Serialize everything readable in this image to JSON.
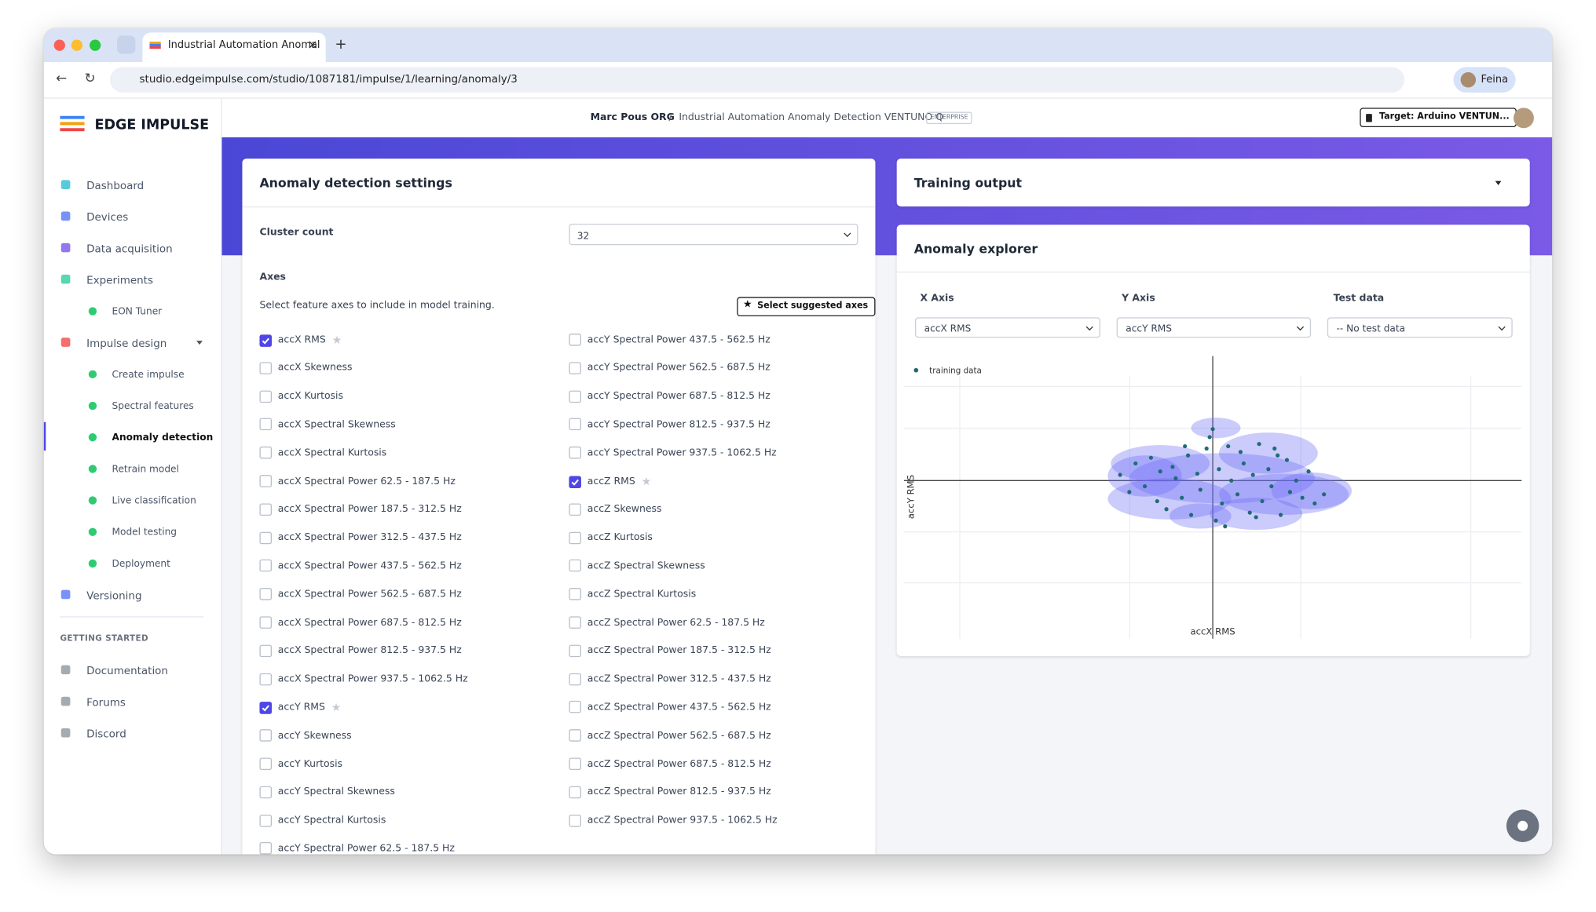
{
  "browser": {
    "tab_title": "Industrial Automation Anomal",
    "url": "studio.edgeimpulse.com/studio/1087181/impulse/1/learning/anomaly/3",
    "profile": "Feina"
  },
  "header": {
    "logo": "EDGE IMPULSE",
    "org": "Marc Pous ORG",
    "separator": "/",
    "project": "Industrial Automation Anomaly Detection VENTUNO Q",
    "badge": "ENTERPRISE",
    "target": "Target: Arduino VENTUN..."
  },
  "sidebar": {
    "nav": [
      {
        "label": "Dashboard"
      },
      {
        "label": "Devices"
      },
      {
        "label": "Data acquisition"
      },
      {
        "label": "Experiments",
        "children": [
          {
            "label": "EON Tuner"
          }
        ]
      },
      {
        "label": "Impulse design",
        "children": [
          {
            "label": "Create impulse"
          },
          {
            "label": "Spectral features"
          },
          {
            "label": "Anomaly detection",
            "active": true
          },
          {
            "label": "Retrain model"
          },
          {
            "label": "Live classification"
          },
          {
            "label": "Model testing"
          },
          {
            "label": "Deployment"
          }
        ]
      },
      {
        "label": "Versioning"
      }
    ],
    "section_title": "GETTING STARTED",
    "links": [
      "Documentation",
      "Forums",
      "Discord"
    ]
  },
  "settings": {
    "title": "Anomaly detection settings",
    "cluster_label": "Cluster count",
    "cluster_value": "32",
    "axes_title": "Axes",
    "axes_hint": "Select feature axes to include in model training.",
    "suggest_button": "Select suggested axes",
    "left_axes": [
      {
        "label": "accX RMS",
        "checked": true
      },
      {
        "label": "accX Skewness",
        "checked": false
      },
      {
        "label": "accX Kurtosis",
        "checked": false
      },
      {
        "label": "accX Spectral Skewness",
        "checked": false
      },
      {
        "label": "accX Spectral Kurtosis",
        "checked": false
      },
      {
        "label": "accX Spectral Power 62.5 - 187.5 Hz",
        "checked": false
      },
      {
        "label": "accX Spectral Power 187.5 - 312.5 Hz",
        "checked": false
      },
      {
        "label": "accX Spectral Power 312.5 - 437.5 Hz",
        "checked": false
      },
      {
        "label": "accX Spectral Power 437.5 - 562.5 Hz",
        "checked": false
      },
      {
        "label": "accX Spectral Power 562.5 - 687.5 Hz",
        "checked": false
      },
      {
        "label": "accX Spectral Power 687.5 - 812.5 Hz",
        "checked": false
      },
      {
        "label": "accX Spectral Power 812.5 - 937.5 Hz",
        "checked": false
      },
      {
        "label": "accX Spectral Power 937.5 - 1062.5 Hz",
        "checked": false
      },
      {
        "label": "accY RMS",
        "checked": true
      },
      {
        "label": "accY Skewness",
        "checked": false
      },
      {
        "label": "accY Kurtosis",
        "checked": false
      },
      {
        "label": "accY Spectral Skewness",
        "checked": false
      },
      {
        "label": "accY Spectral Kurtosis",
        "checked": false
      },
      {
        "label": "accY Spectral Power 62.5 - 187.5 Hz",
        "checked": false
      }
    ],
    "right_axes": [
      {
        "label": "accY Spectral Power 437.5 - 562.5 Hz",
        "checked": false
      },
      {
        "label": "accY Spectral Power 562.5 - 687.5 Hz",
        "checked": false
      },
      {
        "label": "accY Spectral Power 687.5 - 812.5 Hz",
        "checked": false
      },
      {
        "label": "accY Spectral Power 812.5 - 937.5 Hz",
        "checked": false
      },
      {
        "label": "accY Spectral Power 937.5 - 1062.5 Hz",
        "checked": false
      },
      {
        "label": "accZ RMS",
        "checked": true
      },
      {
        "label": "accZ Skewness",
        "checked": false
      },
      {
        "label": "accZ Kurtosis",
        "checked": false
      },
      {
        "label": "accZ Spectral Skewness",
        "checked": false
      },
      {
        "label": "accZ Spectral Kurtosis",
        "checked": false
      },
      {
        "label": "accZ Spectral Power 62.5 - 187.5 Hz",
        "checked": false
      },
      {
        "label": "accZ Spectral Power 187.5 - 312.5 Hz",
        "checked": false
      },
      {
        "label": "accZ Spectral Power 312.5 - 437.5 Hz",
        "checked": false
      },
      {
        "label": "accZ Spectral Power 437.5 - 562.5 Hz",
        "checked": false
      },
      {
        "label": "accZ Spectral Power 562.5 - 687.5 Hz",
        "checked": false
      },
      {
        "label": "accZ Spectral Power 687.5 - 812.5 Hz",
        "checked": false
      },
      {
        "label": "accZ Spectral Power 812.5 - 937.5 Hz",
        "checked": false
      },
      {
        "label": "accZ Spectral Power 937.5 - 1062.5 Hz",
        "checked": false
      }
    ]
  },
  "training_output": {
    "title": "Training output"
  },
  "explorer": {
    "title": "Anomaly explorer",
    "x_axis_label": "X Axis",
    "y_axis_label": "Y Axis",
    "test_label": "Test data",
    "x_select": "accX RMS",
    "y_select": "accY RMS",
    "test_select": "-- No test data"
  },
  "chart_data": {
    "type": "scatter",
    "x_label": "accX RMS",
    "y_label": "accY RMS",
    "xlim": [
      -1,
      1
    ],
    "ylim": [
      -1,
      1
    ],
    "series": [
      {
        "name": "training data",
        "color": "#1f6b74",
        "x": [
          -0.3,
          -0.27,
          -0.25,
          -0.22,
          -0.2,
          -0.18,
          -0.17,
          -0.15,
          -0.13,
          -0.12,
          -0.1,
          -0.08,
          -0.07,
          -0.05,
          -0.04,
          -0.02,
          0.0,
          0.01,
          0.02,
          0.03,
          0.05,
          0.06,
          0.08,
          0.09,
          0.1,
          0.12,
          0.13,
          0.15,
          0.16,
          0.18,
          0.19,
          0.21,
          0.22,
          0.24,
          0.25,
          0.27,
          0.29,
          0.31,
          0.33,
          0.36,
          -0.01,
          0.04,
          -0.09,
          0.14,
          0.2
        ],
        "values": [
          0.05,
          -0.1,
          0.15,
          -0.05,
          0.2,
          -0.18,
          0.08,
          -0.25,
          0.12,
          0.02,
          -0.15,
          0.22,
          -0.3,
          0.06,
          -0.08,
          0.28,
          0.45,
          -0.35,
          0.1,
          -0.2,
          0.3,
          0.0,
          -0.12,
          0.25,
          0.15,
          -0.28,
          0.05,
          0.32,
          -0.18,
          0.1,
          -0.05,
          0.22,
          -0.3,
          0.18,
          -0.1,
          0.0,
          -0.15,
          0.08,
          -0.2,
          -0.12,
          0.38,
          -0.4,
          0.3,
          -0.32,
          0.28
        ]
      }
    ],
    "clusters": {
      "color": "#6b6bf5",
      "cx": [
        0.01,
        -0.17,
        0.18,
        0.03,
        -0.14,
        0.23,
        0.32,
        -0.04,
        0.14,
        -0.22
      ],
      "cy": [
        0.46,
        0.15,
        0.24,
        0.02,
        -0.16,
        -0.12,
        -0.09,
        -0.31,
        -0.29,
        0.04
      ],
      "rx": [
        0.08,
        0.16,
        0.16,
        0.3,
        0.2,
        0.21,
        0.13,
        0.1,
        0.15,
        0.12
      ],
      "ry": [
        0.09,
        0.16,
        0.18,
        0.22,
        0.18,
        0.18,
        0.16,
        0.11,
        0.14,
        0.18
      ]
    }
  }
}
